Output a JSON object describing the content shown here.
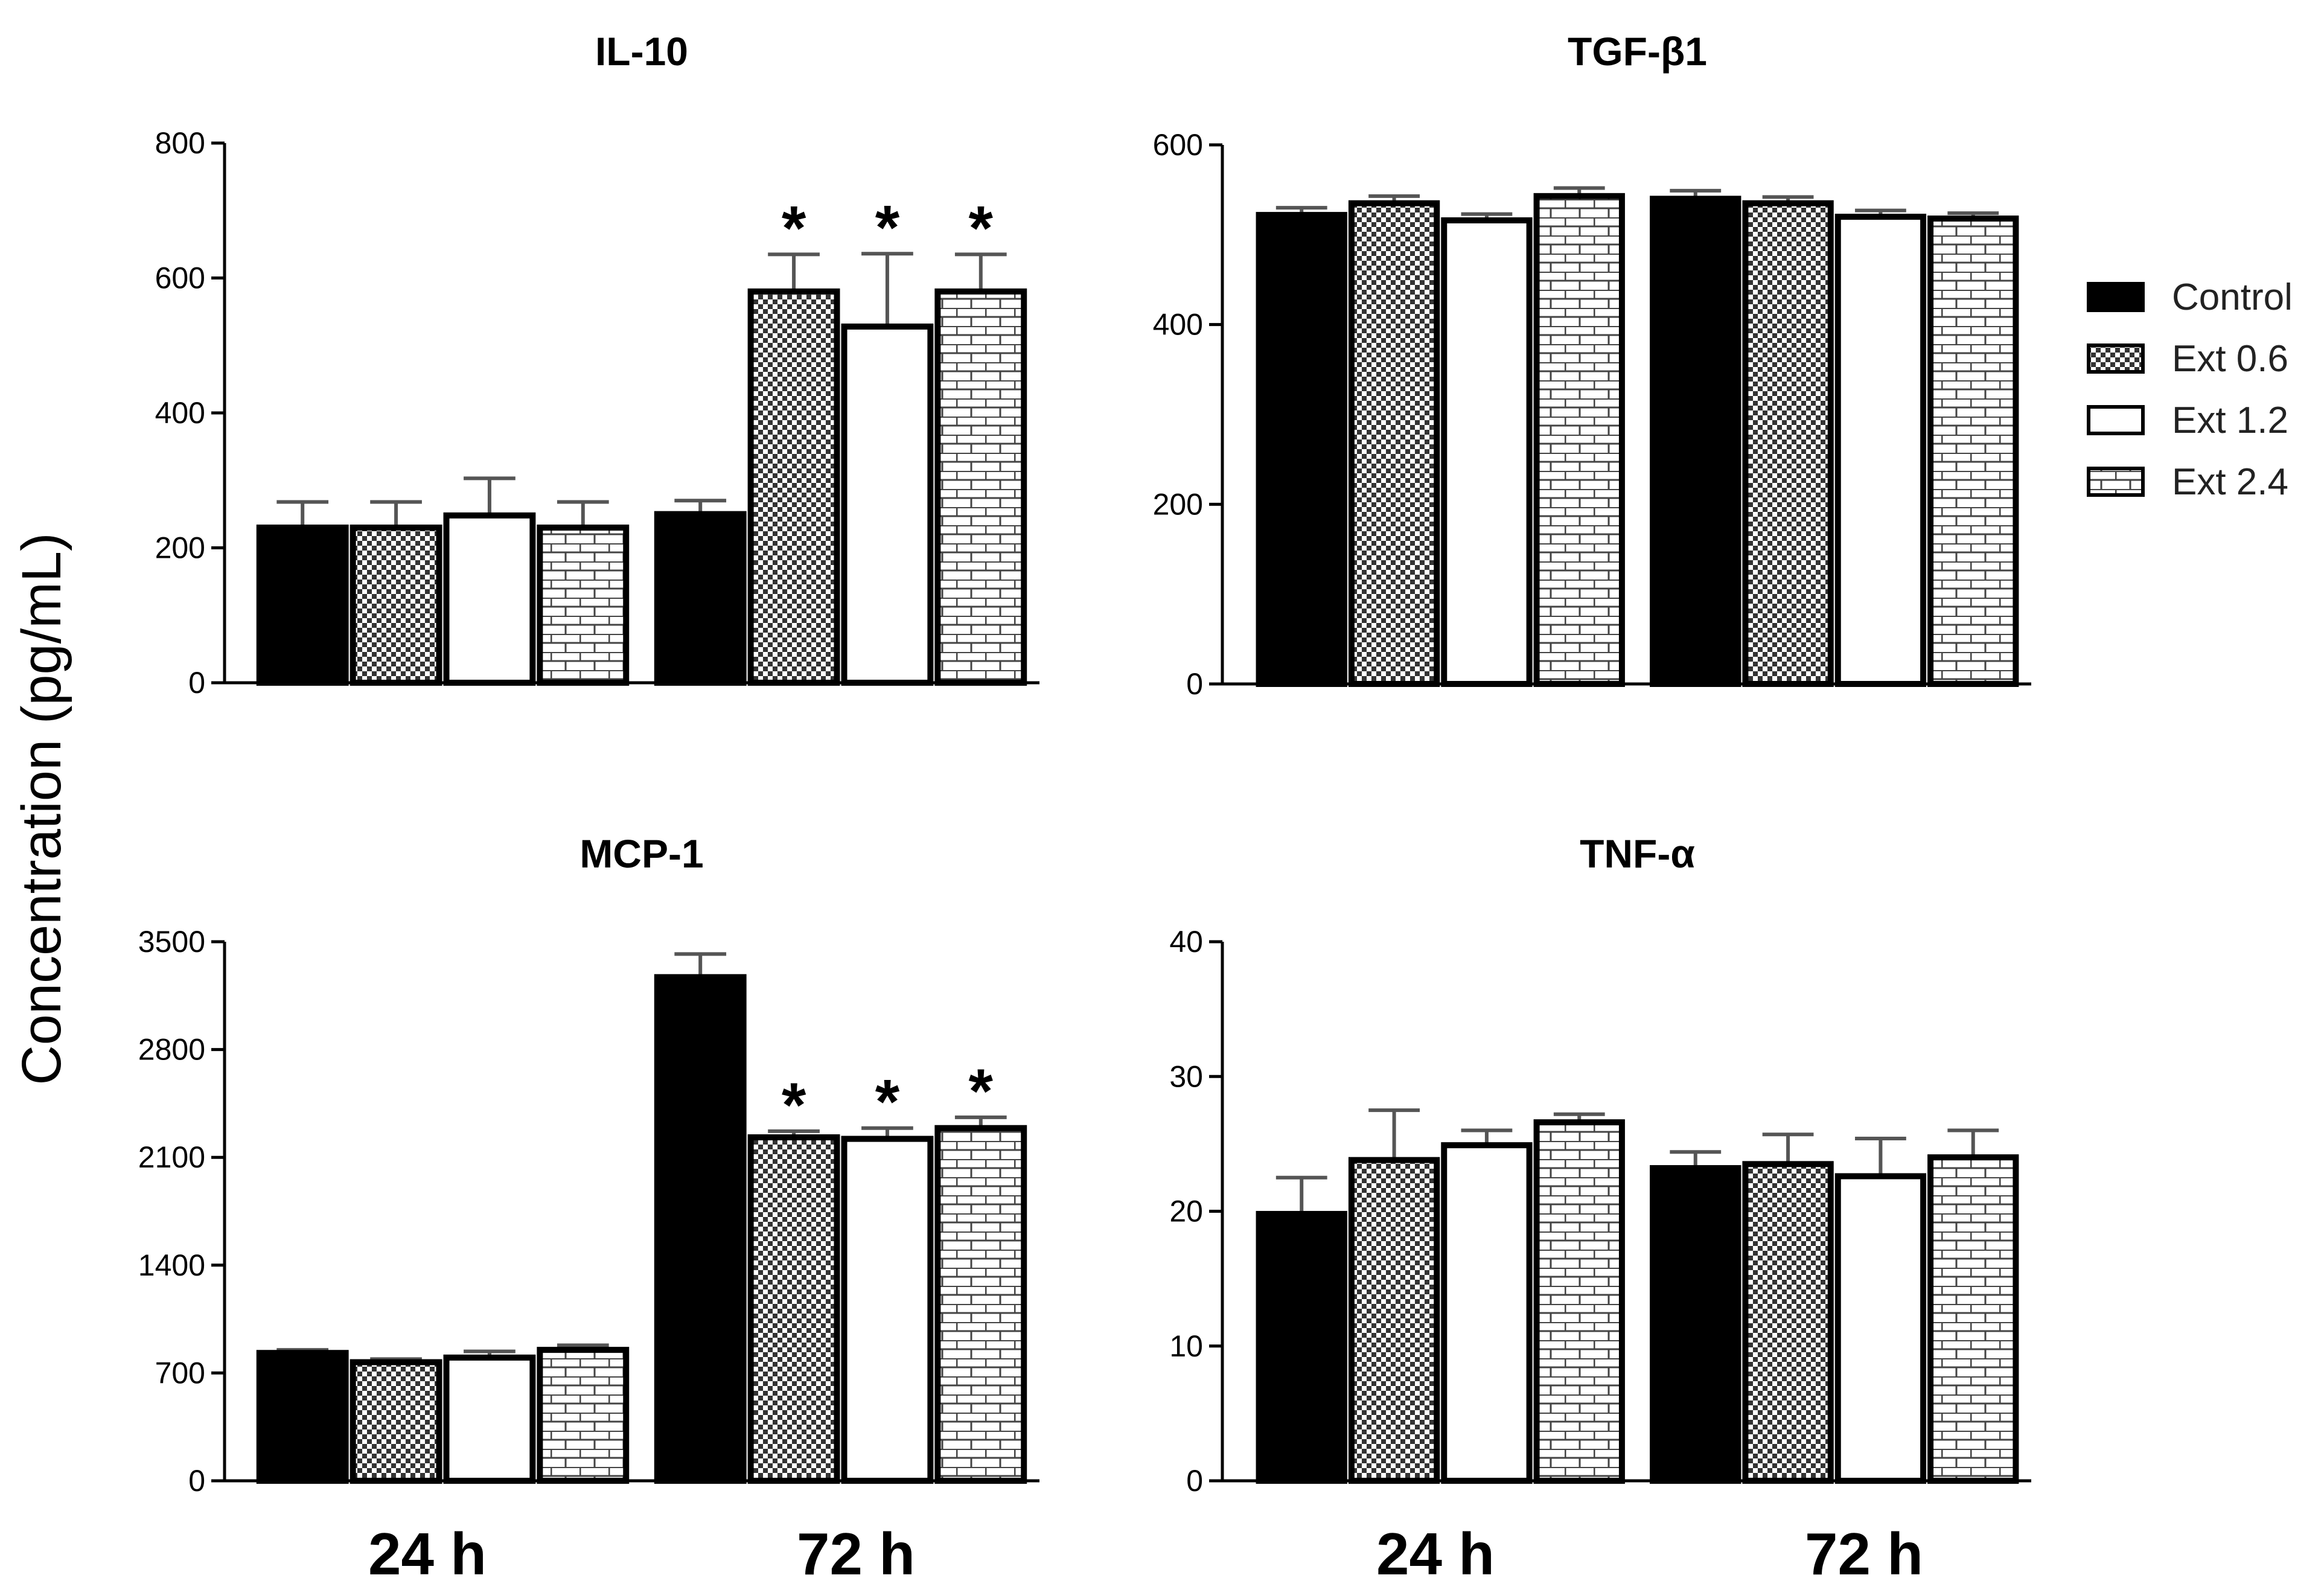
{
  "figure": {
    "ylabel": "Concentration (pg/mL)",
    "group_labels": [
      "24 h",
      "72 h"
    ]
  },
  "legend": {
    "items": [
      {
        "label": "Control",
        "pattern": "solid"
      },
      {
        "label": "Ext 0.6",
        "pattern": "checker"
      },
      {
        "label": "Ext 1.2",
        "pattern": "open"
      },
      {
        "label": "Ext 2.4",
        "pattern": "brick"
      }
    ]
  },
  "chart_data": [
    {
      "type": "bar",
      "title": "IL-10",
      "categories": [
        "24 h",
        "72 h"
      ],
      "ylim": [
        0,
        800
      ],
      "yticks": [
        0,
        200,
        400,
        600,
        800
      ],
      "series": [
        {
          "name": "Control",
          "values": [
            230,
            250
          ],
          "errors": [
            38,
            20
          ],
          "significant": [
            false,
            false
          ]
        },
        {
          "name": "Ext 0.6",
          "values": [
            230,
            580
          ],
          "errors": [
            38,
            55
          ],
          "significant": [
            false,
            true
          ]
        },
        {
          "name": "Ext 1.2",
          "values": [
            248,
            528
          ],
          "errors": [
            55,
            108
          ],
          "significant": [
            false,
            true
          ]
        },
        {
          "name": "Ext 2.4",
          "values": [
            230,
            580
          ],
          "errors": [
            38,
            55
          ],
          "significant": [
            false,
            true
          ]
        }
      ],
      "significance_marker": "*"
    },
    {
      "type": "bar",
      "title": "TGF-β1",
      "categories": [
        "24 h",
        "72 h"
      ],
      "ylim": [
        0,
        600
      ],
      "yticks": [
        0,
        200,
        400,
        600
      ],
      "series": [
        {
          "name": "Control",
          "values": [
            522,
            540
          ],
          "errors": [
            8,
            9
          ],
          "significant": [
            false,
            false
          ]
        },
        {
          "name": "Ext 0.6",
          "values": [
            535,
            535
          ],
          "errors": [
            8,
            7
          ],
          "significant": [
            false,
            false
          ]
        },
        {
          "name": "Ext 1.2",
          "values": [
            516,
            520
          ],
          "errors": [
            7,
            7
          ],
          "significant": [
            false,
            false
          ]
        },
        {
          "name": "Ext 2.4",
          "values": [
            543,
            518
          ],
          "errors": [
            9,
            6
          ],
          "significant": [
            false,
            false
          ]
        }
      ]
    },
    {
      "type": "bar",
      "title": "MCP-1",
      "categories": [
        "24 h",
        "72 h"
      ],
      "ylim": [
        0,
        3500
      ],
      "yticks": [
        0,
        700,
        1400,
        2100,
        2800,
        3500
      ],
      "series": [
        {
          "name": "Control",
          "values": [
            830,
            3270
          ],
          "errors": [
            20,
            150
          ],
          "significant": [
            false,
            false
          ]
        },
        {
          "name": "Ext 0.6",
          "values": [
            770,
            2230
          ],
          "errors": [
            20,
            40
          ],
          "significant": [
            false,
            true
          ]
        },
        {
          "name": "Ext 1.2",
          "values": [
            800,
            2220
          ],
          "errors": [
            40,
            70
          ],
          "significant": [
            false,
            true
          ]
        },
        {
          "name": "Ext 2.4",
          "values": [
            850,
            2290
          ],
          "errors": [
            30,
            70
          ],
          "significant": [
            false,
            true
          ]
        }
      ],
      "significance_marker": "*"
    },
    {
      "type": "bar",
      "title": "TNF-α",
      "categories": [
        "24 h",
        "72 h"
      ],
      "ylim": [
        0,
        40
      ],
      "yticks": [
        0,
        10,
        20,
        30,
        40
      ],
      "series": [
        {
          "name": "Control",
          "values": [
            19.8,
            23.2
          ],
          "errors": [
            2.7,
            1.2
          ],
          "significant": [
            false,
            false
          ]
        },
        {
          "name": "Ext 0.6",
          "values": [
            23.8,
            23.5
          ],
          "errors": [
            3.7,
            2.2
          ],
          "significant": [
            false,
            false
          ]
        },
        {
          "name": "Ext 1.2",
          "values": [
            24.9,
            22.6
          ],
          "errors": [
            1.1,
            2.8
          ],
          "significant": [
            false,
            false
          ]
        },
        {
          "name": "Ext 2.4",
          "values": [
            26.6,
            24.0
          ],
          "errors": [
            0.6,
            2.0
          ],
          "significant": [
            false,
            false
          ]
        }
      ]
    }
  ]
}
